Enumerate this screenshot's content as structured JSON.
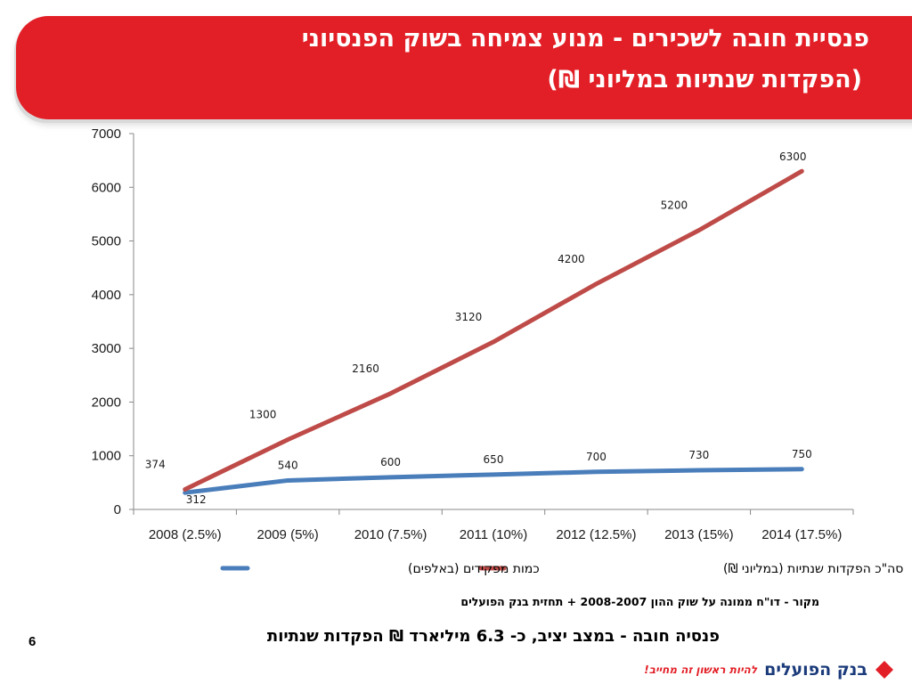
{
  "header": {
    "title_line1": "פנסיית חובה לשכירים - מנוע צמיחה בשוק הפנסיוני",
    "title_line2": "(הפקדות שנתיות במליוני ₪)"
  },
  "chart_data": {
    "type": "line",
    "categories": [
      "2008 (2.5%)",
      "2009 (5%)",
      "2010 (7.5%)",
      "2011 (10%)",
      "2012 (12.5%)",
      "2013 (15%)",
      "2014 (17.5%)"
    ],
    "series": [
      {
        "name": "כמות מפקידים (באלפים)",
        "color": "#4a7ebb",
        "values": [
          312,
          540,
          600,
          650,
          700,
          730,
          750
        ]
      },
      {
        "name": "סה\"כ הפקדות שנתיות (במליוני ₪)",
        "color": "#be4b48",
        "values": [
          374,
          1300,
          2160,
          3120,
          4200,
          5200,
          6300
        ]
      }
    ],
    "y_ticks": [
      "0",
      "1000",
      "2000",
      "3000",
      "4000",
      "5000",
      "6000",
      "7000"
    ],
    "ylim": [
      0,
      7000
    ],
    "grid": false,
    "legend_position": "bottom"
  },
  "footer": {
    "source": "מקור - דו\"ח ממונה על שוק ההון 2008-2007 + תחזית בנק הפועלים",
    "conclusion": "פנסיה חובה - במצב יציב, כ- 6.3 מיליארד ₪ הפקדות שנתיות",
    "page_number": "6",
    "brand_name": "בנק הפועלים",
    "brand_slogan": "להיות ראשון זה מחייב!",
    "brand_color": "#e21f26"
  }
}
